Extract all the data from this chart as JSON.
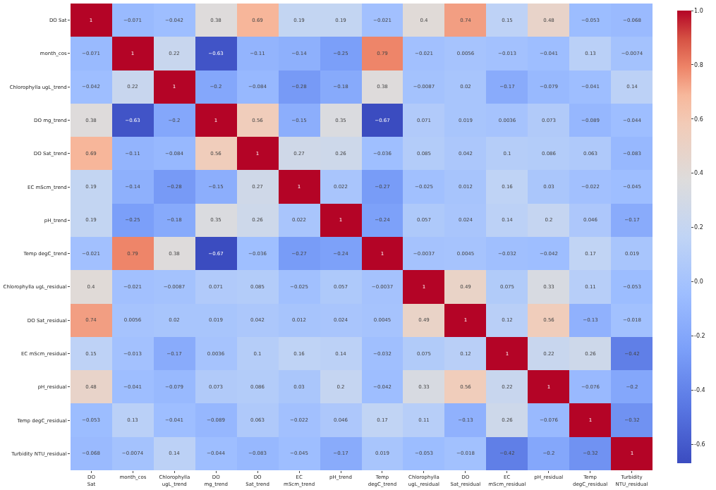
{
  "chart_data": {
    "type": "heatmap",
    "categories": [
      "DO Sat",
      "month_cos",
      "Chlorophylla ugL_trend",
      "DO mg_trend",
      "DO Sat_trend",
      "EC mScm_trend",
      "pH_trend",
      "Temp degC_trend",
      "Chlorophylla ugL_residual",
      "DO Sat_residual",
      "EC mScm_residual",
      "pH_residual",
      "Temp degC_residual",
      "Turbidity NTU_residual"
    ],
    "y_categories": [
      "DO Sat",
      "month_cos",
      "Chlorophylla ugL_trend",
      "DO mg_trend",
      "DO Sat_trend",
      "EC mScm_trend",
      "pH_trend",
      "Temp degC_trend",
      "Chlorophylla ugL_residual",
      "DO Sat_residual",
      "EC mScm_residual",
      "pH_residual",
      "Temp degC_residual",
      "Turbidity NTU_residual"
    ],
    "cells": [
      [
        1,
        -0.071,
        -0.042,
        0.38,
        0.69,
        0.19,
        0.19,
        -0.021,
        0.4,
        0.74,
        0.15,
        0.48,
        -0.053,
        -0.068
      ],
      [
        -0.071,
        1,
        0.22,
        -0.63,
        -0.11,
        -0.14,
        -0.25,
        0.79,
        -0.021,
        0.0056,
        -0.013,
        -0.041,
        0.13,
        -0.0074
      ],
      [
        -0.042,
        0.22,
        1,
        -0.2,
        -0.084,
        -0.28,
        -0.18,
        0.38,
        -0.0087,
        0.02,
        -0.17,
        -0.079,
        -0.041,
        0.14
      ],
      [
        0.38,
        -0.63,
        -0.2,
        1,
        0.56,
        -0.15,
        0.35,
        -0.67,
        0.071,
        0.019,
        0.0036,
        0.073,
        -0.089,
        -0.044
      ],
      [
        0.69,
        -0.11,
        -0.084,
        0.56,
        1,
        0.27,
        0.26,
        -0.036,
        0.085,
        0.042,
        0.1,
        0.086,
        0.063,
        -0.083
      ],
      [
        0.19,
        -0.14,
        -0.28,
        -0.15,
        0.27,
        1,
        0.022,
        -0.27,
        -0.025,
        0.012,
        0.16,
        0.03,
        -0.022,
        -0.045
      ],
      [
        0.19,
        -0.25,
        -0.18,
        0.35,
        0.26,
        0.022,
        1,
        -0.24,
        0.057,
        0.024,
        0.14,
        0.2,
        0.046,
        -0.17
      ],
      [
        -0.021,
        0.79,
        0.38,
        -0.67,
        -0.036,
        -0.27,
        -0.24,
        1,
        -0.0037,
        0.0045,
        -0.032,
        -0.042,
        0.17,
        0.019
      ],
      [
        0.4,
        -0.021,
        -0.0087,
        0.071,
        0.085,
        -0.025,
        0.057,
        -0.0037,
        1,
        0.49,
        0.075,
        0.33,
        0.11,
        -0.053
      ],
      [
        0.74,
        0.0056,
        0.02,
        0.019,
        0.042,
        0.012,
        0.024,
        0.0045,
        0.49,
        1,
        0.12,
        0.56,
        -0.13,
        -0.018
      ],
      [
        0.15,
        -0.013,
        -0.17,
        0.0036,
        0.1,
        0.16,
        0.14,
        -0.032,
        0.075,
        0.12,
        1,
        0.22,
        0.26,
        -0.42
      ],
      [
        0.48,
        -0.041,
        -0.079,
        0.073,
        0.086,
        0.03,
        0.2,
        -0.042,
        0.33,
        0.56,
        0.22,
        1,
        -0.076,
        -0.2
      ],
      [
        -0.053,
        0.13,
        -0.041,
        -0.089,
        0.063,
        -0.022,
        0.046,
        0.17,
        0.11,
        -0.13,
        0.26,
        -0.076,
        1,
        -0.32
      ],
      [
        -0.068,
        -0.0074,
        0.14,
        -0.044,
        -0.083,
        -0.045,
        -0.17,
        0.019,
        -0.053,
        -0.018,
        -0.42,
        -0.2,
        -0.32,
        1
      ]
    ],
    "clim": [
      -0.67,
      1
    ],
    "cticks": [
      {
        "value": -0.6,
        "label": "-0.6"
      },
      {
        "value": -0.4,
        "label": "-0.4"
      },
      {
        "value": -0.2,
        "label": "-0.2"
      },
      {
        "value": 0,
        "label": "0.0"
      },
      {
        "value": 0.2,
        "label": "0.2"
      },
      {
        "value": 0.4,
        "label": "0.4"
      },
      {
        "value": 0.6,
        "label": "0.6"
      },
      {
        "value": 0.8,
        "label": "0.8"
      },
      {
        "value": 1,
        "label": "1.0"
      }
    ],
    "data_labels": true
  }
}
